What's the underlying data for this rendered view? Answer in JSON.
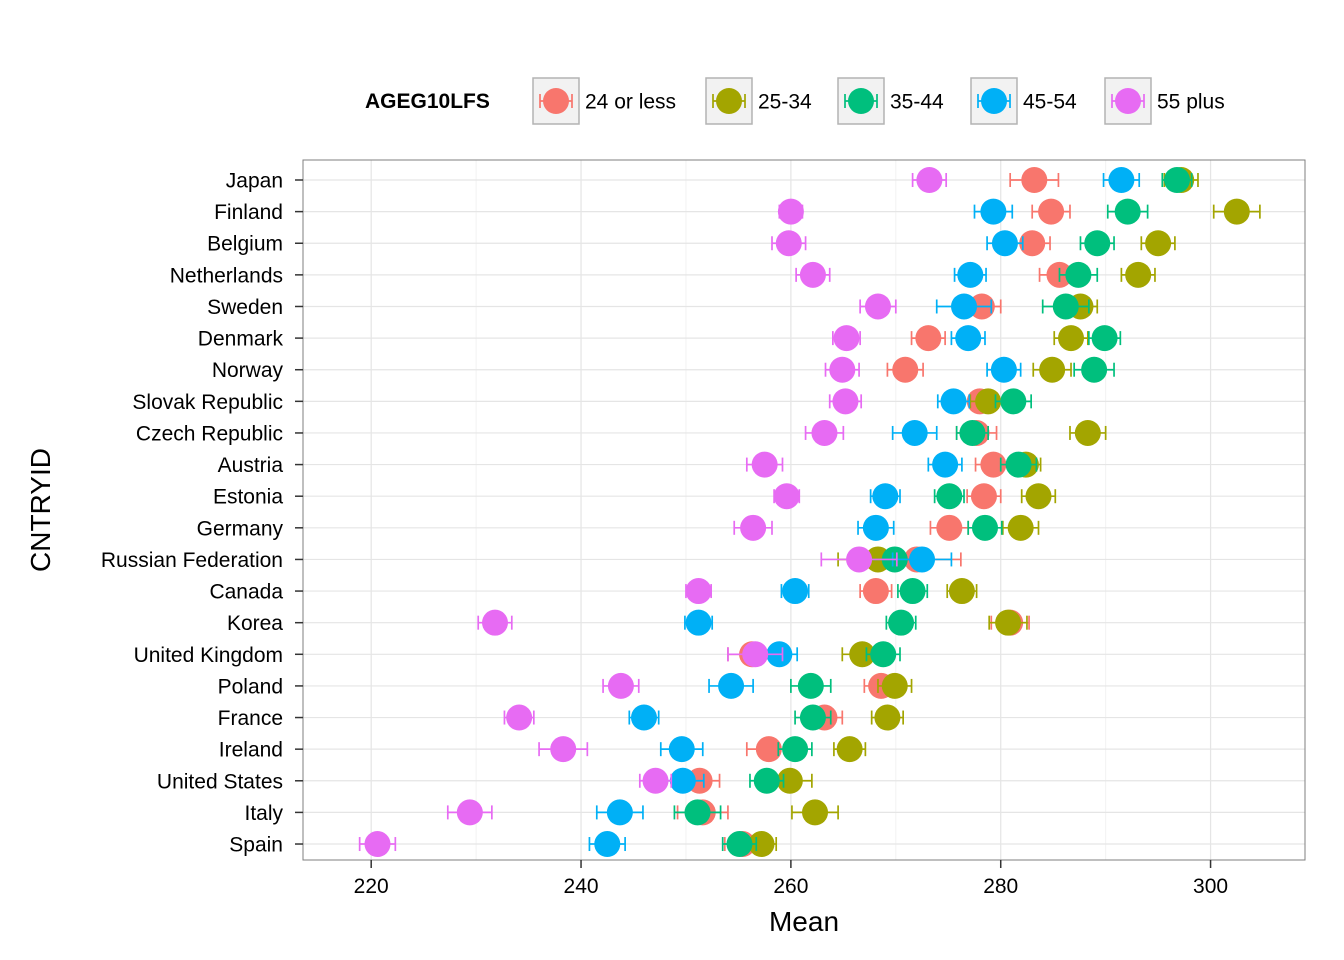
{
  "chart_data": {
    "type": "scatter",
    "xlabel": "Mean",
    "ylabel": "CNTRYID",
    "xlim": [
      213.5,
      309
    ],
    "x_ticks": [
      220,
      240,
      260,
      280,
      300
    ],
    "grid": true,
    "legend": {
      "title": "AGEG10LFS",
      "position": "top"
    },
    "categories": [
      "Japan",
      "Finland",
      "Belgium",
      "Netherlands",
      "Sweden",
      "Denmark",
      "Norway",
      "Slovak Republic",
      "Czech Republic",
      "Austria",
      "Estonia",
      "Germany",
      "Russian Federation",
      "Canada",
      "Korea",
      "United Kingdom",
      "Poland",
      "France",
      "Ireland",
      "United States",
      "Italy",
      "Spain"
    ],
    "series": [
      {
        "name": "24 or less",
        "color": "#F8766D",
        "values": [
          283.2,
          284.8,
          283,
          285.6,
          278.2,
          273.1,
          270.9,
          278,
          277.7,
          279.3,
          278.4,
          275.1,
          272,
          268.1,
          280.9,
          256.3,
          268.6,
          263.2,
          257.9,
          251.3,
          251.6,
          255.4
        ],
        "errors": [
          2.3,
          1.8,
          1.7,
          1.9,
          1.8,
          1.6,
          1.7,
          1.6,
          1.9,
          1.7,
          1.6,
          1.8,
          4.2,
          1.5,
          1.8,
          2.3,
          1.6,
          1.7,
          2.1,
          1.9,
          2.4,
          1.7
        ]
      },
      {
        "name": "25-34",
        "color": "#A3A500",
        "values": [
          297.2,
          302.5,
          295,
          293.1,
          287.6,
          286.7,
          284.9,
          278.8,
          288.3,
          282.4,
          283.6,
          281.9,
          268.3,
          276.3,
          280.7,
          266.8,
          269.9,
          269.2,
          265.6,
          259.9,
          262.3,
          257.2
        ],
        "errors": [
          1.6,
          2.2,
          1.6,
          1.6,
          1.6,
          1.6,
          1.8,
          1.7,
          1.7,
          1.4,
          1.6,
          1.7,
          3.8,
          1.4,
          1.8,
          1.9,
          1.6,
          1.5,
          1.5,
          2.1,
          2.2,
          1.4
        ]
      },
      {
        "name": "35-44",
        "color": "#00BF7D",
        "values": [
          296.8,
          292.1,
          289.2,
          287.4,
          286.2,
          289.9,
          288.9,
          281.2,
          277.3,
          281.7,
          275.1,
          278.5,
          269.9,
          271.6,
          270.5,
          268.8,
          261.9,
          262.1,
          260.4,
          257.7,
          251.1,
          255.1
        ],
        "errors": [
          1.4,
          1.9,
          1.6,
          1.8,
          2.2,
          1.5,
          1.9,
          1.7,
          1.5,
          1.7,
          1.4,
          1.6,
          3.1,
          1.4,
          1.4,
          1.6,
          1.9,
          1.7,
          1.6,
          1.6,
          2.2,
          1.6
        ]
      },
      {
        "name": "45-54",
        "color": "#00B0F6",
        "values": [
          291.5,
          279.3,
          280.4,
          277.1,
          276.5,
          276.9,
          280.3,
          275.5,
          271.8,
          274.7,
          269,
          268.1,
          272.5,
          260.4,
          251.2,
          258.9,
          254.3,
          246,
          249.6,
          249.7,
          243.7,
          242.5
        ],
        "errors": [
          1.7,
          1.8,
          1.7,
          1.5,
          2.6,
          1.6,
          1.6,
          1.5,
          2.1,
          1.6,
          1.4,
          1.7,
          2.8,
          1.3,
          1.3,
          1.7,
          2.1,
          1.4,
          2,
          2,
          2.2,
          1.7
        ]
      },
      {
        "name": "55 plus",
        "color": "#E76BF3",
        "values": [
          273.2,
          260,
          259.8,
          262.1,
          268.3,
          265.3,
          264.9,
          265.2,
          263.2,
          257.5,
          259.6,
          256.4,
          266.5,
          251.2,
          231.8,
          256.6,
          243.8,
          234.1,
          238.3,
          247.1,
          229.4,
          220.6
        ],
        "errors": [
          1.6,
          1.1,
          1.6,
          1.6,
          1.7,
          1.3,
          1.6,
          1.5,
          1.8,
          1.7,
          1.2,
          1.8,
          3.6,
          1.2,
          1.6,
          2.6,
          1.7,
          1.4,
          2.3,
          1.5,
          2.1,
          1.7
        ]
      }
    ]
  }
}
